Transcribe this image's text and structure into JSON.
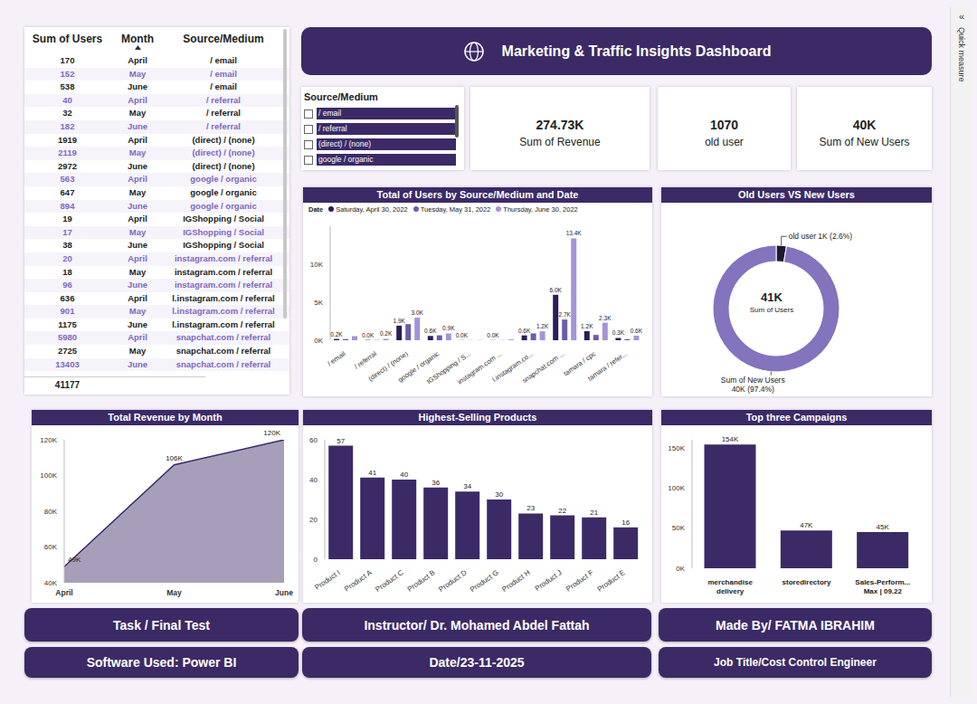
{
  "header": {
    "title": "Marketing & Traffic Insights Dashboard"
  },
  "table": {
    "columns": [
      "Sum of Users",
      "Month",
      "Source/Medium"
    ],
    "rows": [
      [
        170,
        "April",
        "/ email"
      ],
      [
        152,
        "May",
        "/ email"
      ],
      [
        538,
        "June",
        "/ email"
      ],
      [
        40,
        "April",
        "/ referral"
      ],
      [
        32,
        "May",
        "/ referral"
      ],
      [
        182,
        "June",
        "/ referral"
      ],
      [
        1919,
        "April",
        "(direct) / (none)"
      ],
      [
        2119,
        "May",
        "(direct) / (none)"
      ],
      [
        2972,
        "June",
        "(direct) / (none)"
      ],
      [
        563,
        "April",
        "google / organic"
      ],
      [
        647,
        "May",
        "google / organic"
      ],
      [
        894,
        "June",
        "google / organic"
      ],
      [
        19,
        "April",
        "IGShopping / Social"
      ],
      [
        17,
        "May",
        "IGShopping / Social"
      ],
      [
        38,
        "June",
        "IGShopping / Social"
      ],
      [
        20,
        "April",
        "instagram.com / referral"
      ],
      [
        18,
        "May",
        "instagram.com / referral"
      ],
      [
        96,
        "June",
        "instagram.com / referral"
      ],
      [
        636,
        "April",
        "l.instagram.com / referral"
      ],
      [
        901,
        "May",
        "l.instagram.com / referral"
      ],
      [
        1175,
        "June",
        "l.instagram.com / referral"
      ],
      [
        5980,
        "April",
        "snapchat.com / referral"
      ],
      [
        2725,
        "May",
        "snapchat.com / referral"
      ],
      [
        13403,
        "June",
        "snapchat.com / referral"
      ]
    ],
    "total": 41177
  },
  "slicer": {
    "title": "Source/Medium",
    "items": [
      "/ email",
      "/ referral",
      "(direct) / (none)",
      "google / organic"
    ]
  },
  "cards": [
    {
      "value": "274.73K",
      "label": "Sum of Revenue"
    },
    {
      "value": 1070,
      "label": "old user"
    },
    {
      "value": "40K",
      "label": "Sum of New Users"
    }
  ],
  "chart_data": [
    {
      "type": "bar",
      "title": "Total of Users by Source/Medium and Date",
      "legend_title": "Date",
      "legend": "top",
      "categories": [
        "/ email",
        "/ referral",
        "(direct) / (none)",
        "google / organic",
        "IGShopping / S...",
        "instagram.com ...",
        "l.instagram.co...",
        "snapchat.com ...",
        "tamara / cpc",
        "tamara / refer..."
      ],
      "series": [
        {
          "name": "Saturday, April 30, 2022",
          "color": "#2c1d57",
          "values": [
            170,
            40,
            1919,
            563,
            19,
            20,
            636,
            5980,
            1200,
            300
          ],
          "value_labels": [
            "0.2K",
            "0.0K",
            "1.9K",
            "0.6K",
            "0.0K",
            "0.0K",
            "0.6K",
            "6.0K",
            "1.2K",
            "0.3K"
          ]
        },
        {
          "name": "Tuesday, May 31, 2022",
          "color": "#6d5ca8",
          "values": [
            152,
            32,
            2119,
            647,
            17,
            18,
            901,
            2725,
            700,
            150
          ],
          "value_labels": [
            null,
            null,
            null,
            null,
            null,
            null,
            null,
            "2.7K",
            null,
            null
          ]
        },
        {
          "name": "Thursday, June 30, 2022",
          "color": "#a593d8",
          "values": [
            538,
            182,
            2972,
            894,
            38,
            96,
            1175,
            13403,
            2300,
            600
          ],
          "value_labels": [
            null,
            "0.2K",
            "3.0K",
            "0.9K",
            null,
            null,
            "1.2K",
            "13.4K",
            "2.3K",
            "0.6K"
          ]
        }
      ],
      "ylim": [
        0,
        15000
      ],
      "yticks": [
        {
          "value": 0,
          "label": "0K"
        },
        {
          "value": 5000,
          "label": "5K"
        },
        {
          "value": 10000,
          "label": "10K"
        }
      ],
      "grid": false,
      "data_labels": true
    },
    {
      "type": "donut",
      "title": "Old Users VS New Users",
      "categories": [
        "old user",
        "Sum of New Users"
      ],
      "values": [
        1070,
        40000
      ],
      "value_labels": [
        "1K (2.6%)",
        "40K (97.4%)"
      ],
      "colors": [
        "#1e1933",
        "#8473bd"
      ],
      "center_value": "41K",
      "center_label": "Sum of Users",
      "data_labels": true
    },
    {
      "type": "area",
      "title": "Total Revenue by Month",
      "categories": [
        "April",
        "May",
        "June"
      ],
      "values": [
        49000,
        106000,
        120000
      ],
      "value_labels": [
        "49K",
        "106K",
        "120K"
      ],
      "color": "#3b2a66",
      "ylim": [
        40000,
        120000
      ],
      "yticks": [
        {
          "value": 40000,
          "label": "40K"
        },
        {
          "value": 60000,
          "label": "60K"
        },
        {
          "value": 80000,
          "label": "80K"
        },
        {
          "value": 100000,
          "label": "100K"
        },
        {
          "value": 120000,
          "label": "120K"
        }
      ],
      "grid": false,
      "data_labels": true
    },
    {
      "type": "bar",
      "title": "Highest-Selling Products",
      "categories": [
        "Product I",
        "Product A",
        "Product C",
        "Product B",
        "Product D",
        "Product G",
        "Product H",
        "Product J",
        "Product F",
        "Product E"
      ],
      "values": [
        57,
        41,
        40,
        36,
        34,
        30,
        23,
        22,
        21,
        16
      ],
      "color": "#3b2a66",
      "ylim": [
        0,
        60
      ],
      "yticks": [
        0,
        20,
        40,
        60
      ],
      "grid": false,
      "data_labels": true
    },
    {
      "type": "bar",
      "title": "Top three Campaigns",
      "categories": [
        "merchandise delivery",
        "storedirectory",
        "Sales-Perform... Max | 09.22"
      ],
      "values": [
        154000,
        47000,
        45000
      ],
      "value_labels": [
        "154K",
        "47K",
        "45K"
      ],
      "color": "#3b2a66",
      "ylim": [
        0,
        160000
      ],
      "yticks": [
        {
          "value": 0,
          "label": "0K"
        },
        {
          "value": 50000,
          "label": "50K"
        },
        {
          "value": 100000,
          "label": "100K"
        },
        {
          "value": 150000,
          "label": "150K"
        }
      ],
      "grid": false,
      "data_labels": true
    }
  ],
  "footer": [
    [
      "Task / Final Test",
      "Instructor/ Dr. Mohamed Abdel Fattah",
      "Made By/ FATMA IBRAHIM"
    ],
    [
      "Software Used: Power BI",
      "Date/23-11-2025",
      "Job Title/Cost Control Engineer"
    ]
  ],
  "side_panel": {
    "toggle": "«",
    "label": "Quick measure"
  }
}
